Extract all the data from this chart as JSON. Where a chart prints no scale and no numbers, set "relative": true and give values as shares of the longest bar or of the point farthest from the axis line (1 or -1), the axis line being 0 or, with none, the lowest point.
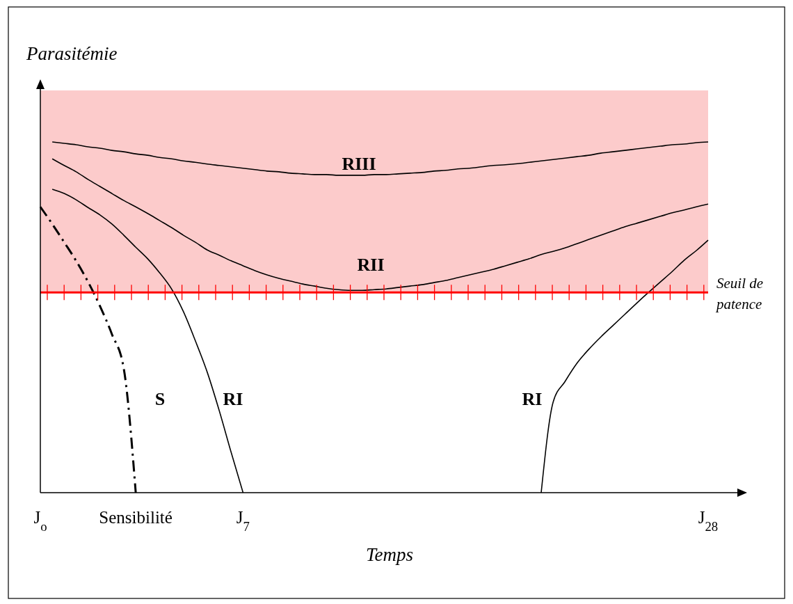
{
  "chart_data": {
    "type": "line",
    "relative": true,
    "xlabel": "Temps",
    "ylabel": "Parasitémie",
    "categories": [
      "J$_{o}$",
      null,
      null,
      null,
      null,
      null,
      null,
      null,
      "Sensibilité",
      null,
      null,
      null,
      null,
      null,
      null,
      null,
      null,
      "J$_{7}$",
      null,
      null,
      null,
      null,
      null,
      null,
      null,
      null,
      null,
      null,
      null,
      null,
      null,
      null,
      null,
      null,
      null,
      null,
      null,
      null,
      null,
      null,
      null,
      null,
      null,
      null,
      null,
      null,
      null,
      null,
      null,
      null,
      null,
      null,
      null,
      null,
      null,
      null,
      "J$_{28}$"
    ],
    "series": [
      {
        "name": "S",
        "color": "#000000",
        "line_style": "dashed",
        "values": [
          0.815,
          0.766,
          0.714,
          0.661,
          0.601,
          0.532,
          0.452,
          0.353,
          0,
          null,
          null,
          null,
          null,
          null,
          null,
          null,
          null,
          null,
          null,
          null,
          null,
          null,
          null,
          null,
          null,
          null,
          null,
          null,
          null,
          null,
          null,
          null,
          null,
          null,
          null,
          null,
          null,
          null,
          null,
          null,
          null,
          null,
          null,
          null,
          null,
          null,
          null,
          null,
          null,
          null,
          null,
          null,
          null,
          null,
          null,
          null,
          null
        ]
      },
      {
        "name": "RI",
        "color": "#000000",
        "line_style": "solid",
        "values": [
          null,
          0.865,
          0.853,
          0.835,
          0.813,
          0.792,
          0.766,
          0.734,
          0.7,
          0.667,
          0.627,
          0.581,
          0.516,
          0.433,
          0.343,
          0.234,
          0.115,
          0,
          null,
          null,
          null,
          null,
          null,
          null,
          null,
          null,
          null,
          null,
          null,
          null,
          null,
          null,
          null,
          null,
          null,
          null,
          null,
          null,
          null,
          null,
          null,
          null,
          null,
          null,
          null,
          null,
          null,
          null,
          null,
          null,
          null,
          null,
          null,
          null,
          null,
          null,
          null
        ]
      },
      {
        "name": "RI",
        "color": "#000000",
        "line_style": "solid",
        "values": [
          null,
          null,
          null,
          null,
          null,
          null,
          null,
          null,
          null,
          null,
          null,
          null,
          null,
          null,
          null,
          null,
          null,
          null,
          null,
          null,
          null,
          null,
          null,
          null,
          null,
          null,
          null,
          null,
          null,
          null,
          null,
          null,
          null,
          null,
          null,
          null,
          null,
          null,
          null,
          null,
          null,
          null,
          0,
          0.258,
          0.317,
          0.369,
          0.409,
          0.444,
          0.476,
          0.508,
          0.54,
          0.571,
          0.601,
          0.631,
          0.663,
          0.69,
          0.72
        ]
      },
      {
        "name": "RII",
        "color": "#000000",
        "line_style": "solid",
        "values": [
          null,
          0.952,
          0.933,
          0.915,
          0.893,
          0.873,
          0.853,
          0.833,
          0.815,
          0.796,
          0.776,
          0.756,
          0.734,
          0.714,
          0.692,
          0.677,
          0.661,
          0.647,
          0.633,
          0.621,
          0.611,
          0.603,
          0.595,
          0.589,
          0.583,
          0.579,
          0.577,
          0.577,
          0.579,
          0.581,
          0.585,
          0.589,
          0.593,
          0.599,
          0.605,
          0.613,
          0.621,
          0.629,
          0.637,
          0.647,
          0.657,
          0.667,
          0.679,
          0.688,
          0.698,
          0.71,
          0.722,
          0.734,
          0.746,
          0.758,
          0.768,
          0.778,
          0.788,
          0.798,
          0.806,
          0.815,
          0.823
        ]
      },
      {
        "name": "RIII",
        "color": "#000000",
        "line_style": "solid",
        "values": [
          null,
          1,
          0.996,
          0.992,
          0.986,
          0.982,
          0.976,
          0.972,
          0.966,
          0.962,
          0.956,
          0.952,
          0.946,
          0.942,
          0.937,
          0.933,
          0.929,
          0.925,
          0.921,
          0.917,
          0.915,
          0.911,
          0.909,
          0.907,
          0.907,
          0.905,
          0.905,
          0.905,
          0.907,
          0.907,
          0.909,
          0.911,
          0.913,
          0.917,
          0.919,
          0.923,
          0.925,
          0.929,
          0.933,
          0.935,
          0.938,
          0.942,
          0.946,
          0.95,
          0.954,
          0.958,
          0.962,
          0.968,
          0.972,
          0.976,
          0.98,
          0.984,
          0.988,
          0.992,
          0.994,
          0.998,
          1
        ]
      }
    ],
    "ref_lines": [
      {
        "axis": "y",
        "value": 0.571,
        "label": "Seuil de patence",
        "color": "#ff0000"
      }
    ],
    "bands": [
      {
        "axis": "y",
        "from": 0.571,
        "to": 1.147,
        "color": "#fccbcb"
      }
    ]
  }
}
